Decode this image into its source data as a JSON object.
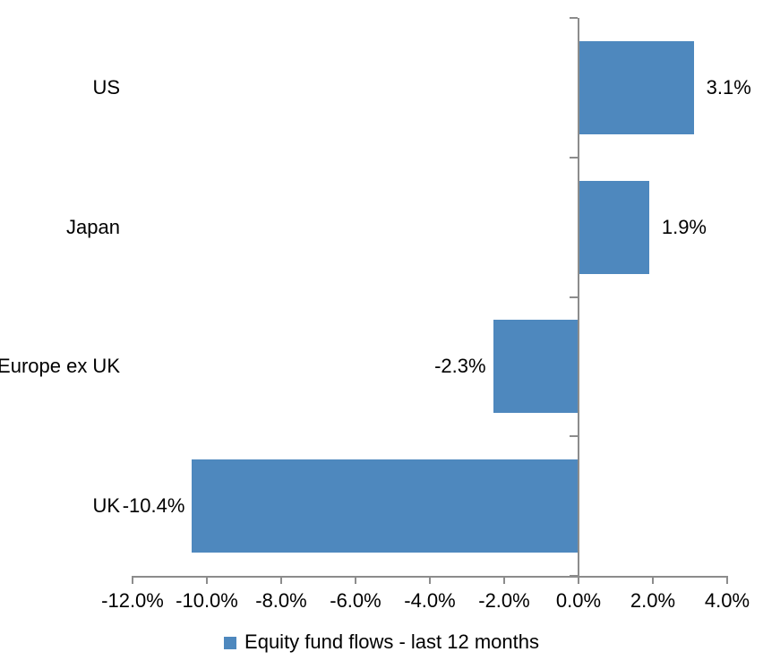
{
  "chart_data": {
    "type": "bar",
    "orientation": "horizontal",
    "categories": [
      "US",
      "Japan",
      "Europe ex UK",
      "UK"
    ],
    "series": [
      {
        "name": "Equity fund flows - last 12 months",
        "values": [
          3.1,
          1.9,
          -2.3,
          -10.4
        ],
        "data_labels": [
          "3.1%",
          "1.9%",
          "-2.3%",
          "-10.4%"
        ]
      }
    ],
    "legend": [
      "Equity fund flows - last 12 months"
    ],
    "legend_position": "bottom",
    "x_axis": {
      "min": -12,
      "max": 4,
      "tick_values": [
        -12,
        -10,
        -8,
        -6,
        -4,
        -2,
        0,
        2,
        4
      ],
      "tick_labels": [
        "-12.0%",
        "-10.0%",
        "-8.0%",
        "-6.0%",
        "-4.0%",
        "-2.0%",
        "0.0%",
        "2.0%",
        "4.0%"
      ]
    },
    "grid": false,
    "colors": {
      "bar": "#4E88BE",
      "axis": "#8C8C8C",
      "text": "#000000",
      "background": "#FFFFFF"
    }
  }
}
